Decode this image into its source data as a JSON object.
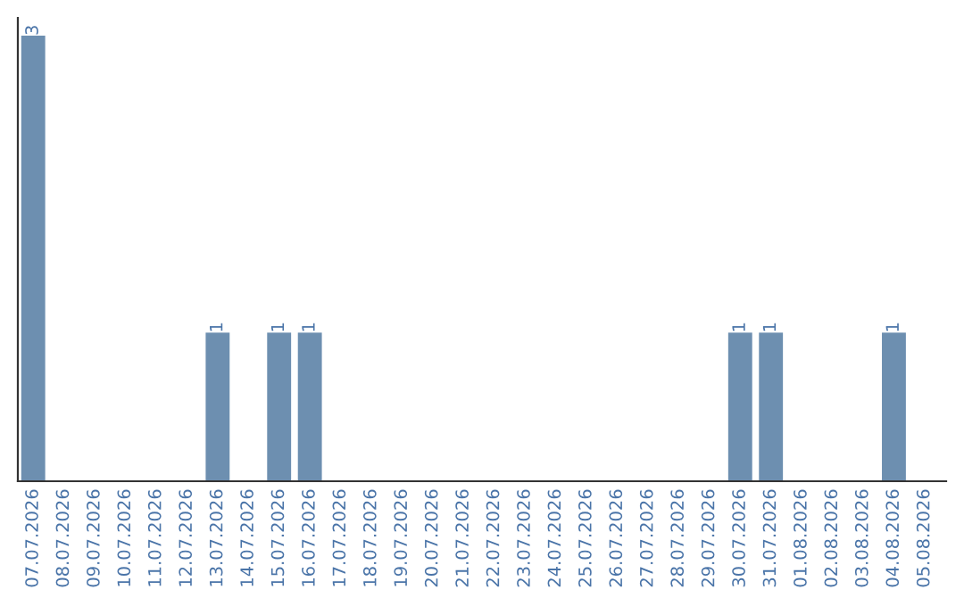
{
  "chart_data": {
    "type": "bar",
    "categories": [
      "07.07.2026",
      "08.07.2026",
      "09.07.2026",
      "10.07.2026",
      "11.07.2026",
      "12.07.2026",
      "13.07.2026",
      "14.07.2026",
      "15.07.2026",
      "16.07.2026",
      "17.07.2026",
      "18.07.2026",
      "19.07.2026",
      "20.07.2026",
      "21.07.2026",
      "22.07.2026",
      "23.07.2026",
      "24.07.2026",
      "25.07.2026",
      "26.07.2026",
      "27.07.2026",
      "28.07.2026",
      "29.07.2026",
      "30.07.2026",
      "31.07.2026",
      "01.08.2026",
      "02.08.2026",
      "03.08.2026",
      "04.08.2026",
      "05.08.2026"
    ],
    "values": [
      3,
      0,
      0,
      0,
      0,
      0,
      1,
      0,
      1,
      1,
      0,
      0,
      0,
      0,
      0,
      0,
      0,
      0,
      0,
      0,
      0,
      0,
      0,
      1,
      1,
      0,
      0,
      0,
      1,
      0
    ],
    "value_labels": [
      "3",
      null,
      null,
      null,
      null,
      null,
      "1",
      null,
      "1",
      "1",
      null,
      null,
      null,
      null,
      null,
      null,
      null,
      null,
      null,
      null,
      null,
      null,
      null,
      "1",
      "1",
      null,
      null,
      null,
      "1",
      null
    ],
    "color": "#6d8fb0",
    "ylim": [
      0,
      3.12
    ],
    "grid": false,
    "legend": false
  }
}
